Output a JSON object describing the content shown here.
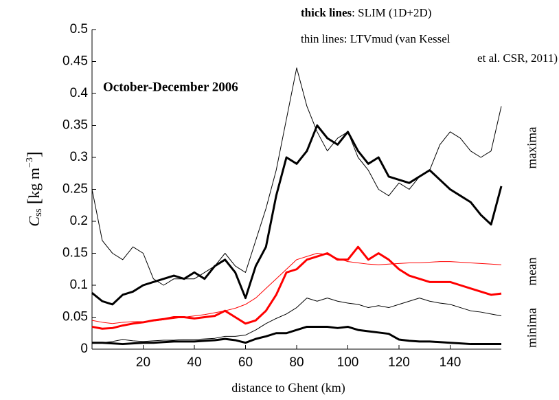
{
  "chart_data": {
    "type": "line",
    "title": "October-December 2006",
    "xlabel": "distance to Ghent (km)",
    "ylabel": {
      "symbol": "C",
      "subscript": "ss",
      "unit": "kg m",
      "exponent": "−3"
    },
    "annotations": {
      "thick_key": "thick lines",
      "thick_text": ": SLIM (1D+2D)",
      "thin_line1": "thin lines: LTVmud (van Kessel",
      "thin_line2": "et al. CSR, 2011)",
      "maxima": "maxima",
      "mean": "mean",
      "minima": "minima"
    },
    "x": [
      0,
      4,
      8,
      12,
      16,
      20,
      24,
      28,
      32,
      36,
      40,
      44,
      48,
      52,
      56,
      60,
      64,
      68,
      72,
      76,
      80,
      84,
      88,
      92,
      96,
      100,
      104,
      108,
      112,
      116,
      120,
      124,
      128,
      132,
      136,
      140,
      144,
      148,
      152,
      156,
      160
    ],
    "series": [
      {
        "color": "#000000",
        "linewidth": 1,
        "values": [
          0.25,
          0.17,
          0.15,
          0.14,
          0.16,
          0.15,
          0.11,
          0.1,
          0.11,
          0.11,
          0.11,
          0.12,
          0.13,
          0.15,
          0.13,
          0.12,
          0.17,
          0.22,
          0.28,
          0.36,
          0.44,
          0.38,
          0.34,
          0.31,
          0.33,
          0.34,
          0.3,
          0.28,
          0.25,
          0.24,
          0.26,
          0.25,
          0.27,
          0.28,
          0.32,
          0.34,
          0.33,
          0.31,
          0.3,
          0.31,
          0.38
        ]
      },
      {
        "color": "#000000",
        "linewidth": 3,
        "values": [
          0.088,
          0.075,
          0.07,
          0.085,
          0.09,
          0.1,
          0.105,
          0.11,
          0.115,
          0.11,
          0.12,
          0.11,
          0.13,
          0.14,
          0.12,
          0.08,
          0.13,
          0.16,
          0.24,
          0.3,
          0.29,
          0.31,
          0.35,
          0.33,
          0.32,
          0.34,
          0.31,
          0.29,
          0.3,
          0.27,
          0.265,
          0.26,
          0.27,
          0.28,
          0.265,
          0.25,
          0.24,
          0.23,
          0.21,
          0.195,
          0.255
        ]
      },
      {
        "color": "#ff0000",
        "linewidth": 1,
        "values": [
          0.045,
          0.042,
          0.04,
          0.042,
          0.043,
          0.043,
          0.044,
          0.046,
          0.048,
          0.05,
          0.052,
          0.054,
          0.057,
          0.06,
          0.064,
          0.07,
          0.08,
          0.095,
          0.11,
          0.125,
          0.14,
          0.145,
          0.15,
          0.148,
          0.142,
          0.137,
          0.135,
          0.133,
          0.132,
          0.133,
          0.134,
          0.135,
          0.135,
          0.136,
          0.137,
          0.137,
          0.136,
          0.135,
          0.134,
          0.133,
          0.132
        ]
      },
      {
        "color": "#ff0000",
        "linewidth": 3,
        "values": [
          0.035,
          0.032,
          0.033,
          0.037,
          0.04,
          0.042,
          0.045,
          0.047,
          0.05,
          0.05,
          0.048,
          0.05,
          0.052,
          0.06,
          0.05,
          0.04,
          0.045,
          0.06,
          0.085,
          0.12,
          0.125,
          0.14,
          0.145,
          0.15,
          0.14,
          0.14,
          0.16,
          0.14,
          0.15,
          0.14,
          0.125,
          0.115,
          0.11,
          0.105,
          0.105,
          0.105,
          0.1,
          0.095,
          0.09,
          0.085,
          0.087
        ]
      },
      {
        "color": "#000000",
        "linewidth": 1,
        "values": [
          0.01,
          0.01,
          0.012,
          0.015,
          0.013,
          0.012,
          0.013,
          0.014,
          0.014,
          0.015,
          0.015,
          0.016,
          0.017,
          0.02,
          0.02,
          0.022,
          0.03,
          0.04,
          0.048,
          0.055,
          0.065,
          0.08,
          0.075,
          0.08,
          0.075,
          0.072,
          0.07,
          0.065,
          0.068,
          0.065,
          0.07,
          0.075,
          0.08,
          0.075,
          0.072,
          0.07,
          0.065,
          0.06,
          0.058,
          0.055,
          0.052
        ]
      },
      {
        "color": "#000000",
        "linewidth": 3,
        "values": [
          0.01,
          0.01,
          0.009,
          0.008,
          0.009,
          0.01,
          0.01,
          0.011,
          0.012,
          0.012,
          0.012,
          0.013,
          0.014,
          0.016,
          0.014,
          0.01,
          0.016,
          0.02,
          0.025,
          0.025,
          0.03,
          0.035,
          0.035,
          0.035,
          0.033,
          0.035,
          0.03,
          0.028,
          0.026,
          0.024,
          0.015,
          0.013,
          0.012,
          0.012,
          0.011,
          0.01,
          0.009,
          0.008,
          0.008,
          0.008,
          0.008
        ]
      }
    ],
    "xlim": [
      0,
      160
    ],
    "xticks": [
      20,
      40,
      60,
      80,
      100,
      120,
      140
    ],
    "ylim": [
      0,
      0.5
    ],
    "yticks": [
      0,
      0.05,
      0.1,
      0.15,
      0.2,
      0.25,
      0.3,
      0.35,
      0.4,
      0.45,
      0.5
    ],
    "grid": false
  }
}
